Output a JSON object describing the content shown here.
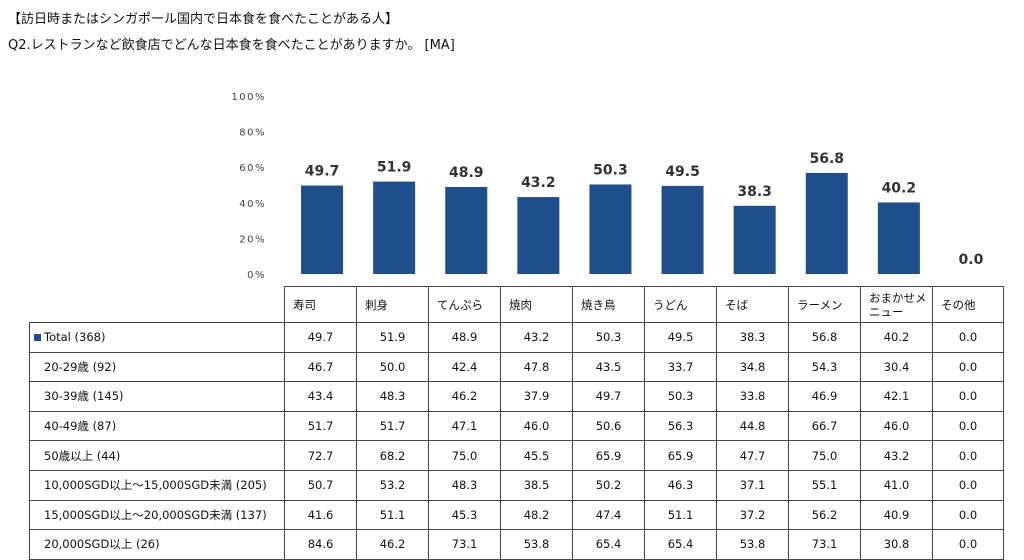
{
  "header": {
    "title_line1": "【訪日時またはシンガポール国内で日本食を食べたことがある人】",
    "title_line2": "Q2.レストランなど飲食店でどんな日本食を食べたことがありますか。 [MA]"
  },
  "colors": {
    "bar": "#1f4e8c"
  },
  "chart_data": {
    "type": "bar",
    "categories": [
      "寿司",
      "刺身",
      "てんぷら",
      "焼肉",
      "焼き鳥",
      "うどん",
      "そば",
      "ラーメン",
      "おまかせメニュー",
      "その他"
    ],
    "values": [
      49.7,
      51.9,
      48.9,
      43.2,
      50.3,
      49.5,
      38.3,
      56.8,
      40.2,
      0.0
    ],
    "value_labels": [
      "49.7",
      "51.9",
      "48.9",
      "43.2",
      "50.3",
      "49.5",
      "38.3",
      "56.8",
      "40.2",
      "0.0"
    ],
    "ylim": [
      0,
      100
    ],
    "yticks": [
      "0%",
      "20%",
      "40%",
      "60%",
      "80%",
      "100%"
    ],
    "xlabel": "",
    "ylabel": "",
    "grid": false,
    "legend": "none"
  },
  "table": {
    "columns": [
      "寿司",
      "刺身",
      "てんぷら",
      "焼肉",
      "焼き鳥",
      "うどん",
      "そば",
      "ラーメン",
      "おまかせメニュー",
      "その他"
    ],
    "rows": [
      {
        "label": "Total (368)",
        "values": [
          "49.7",
          "51.9",
          "48.9",
          "43.2",
          "50.3",
          "49.5",
          "38.3",
          "56.8",
          "40.2",
          "0.0"
        ]
      },
      {
        "label": "20-29歳 (92)",
        "values": [
          "46.7",
          "50.0",
          "42.4",
          "47.8",
          "43.5",
          "33.7",
          "34.8",
          "54.3",
          "30.4",
          "0.0"
        ]
      },
      {
        "label": "30-39歳 (145)",
        "values": [
          "43.4",
          "48.3",
          "46.2",
          "37.9",
          "49.7",
          "50.3",
          "33.8",
          "46.9",
          "42.1",
          "0.0"
        ]
      },
      {
        "label": "40-49歳 (87)",
        "values": [
          "51.7",
          "51.7",
          "47.1",
          "46.0",
          "50.6",
          "56.3",
          "44.8",
          "66.7",
          "46.0",
          "0.0"
        ]
      },
      {
        "label": "50歳以上 (44)",
        "values": [
          "72.7",
          "68.2",
          "75.0",
          "45.5",
          "65.9",
          "65.9",
          "47.7",
          "75.0",
          "43.2",
          "0.0"
        ]
      },
      {
        "label": "10,000SGD以上～15,000SGD未満 (205)",
        "values": [
          "50.7",
          "53.2",
          "48.3",
          "38.5",
          "50.2",
          "46.3",
          "37.1",
          "55.1",
          "41.0",
          "0.0"
        ]
      },
      {
        "label": "15,000SGD以上～20,000SGD未満 (137)",
        "values": [
          "41.6",
          "51.1",
          "45.3",
          "48.2",
          "47.4",
          "51.1",
          "37.2",
          "56.2",
          "40.9",
          "0.0"
        ]
      },
      {
        "label": "20,000SGD以上 (26)",
        "values": [
          "84.6",
          "46.2",
          "73.1",
          "53.8",
          "65.4",
          "65.4",
          "53.8",
          "73.1",
          "30.8",
          "0.0"
        ]
      }
    ]
  }
}
